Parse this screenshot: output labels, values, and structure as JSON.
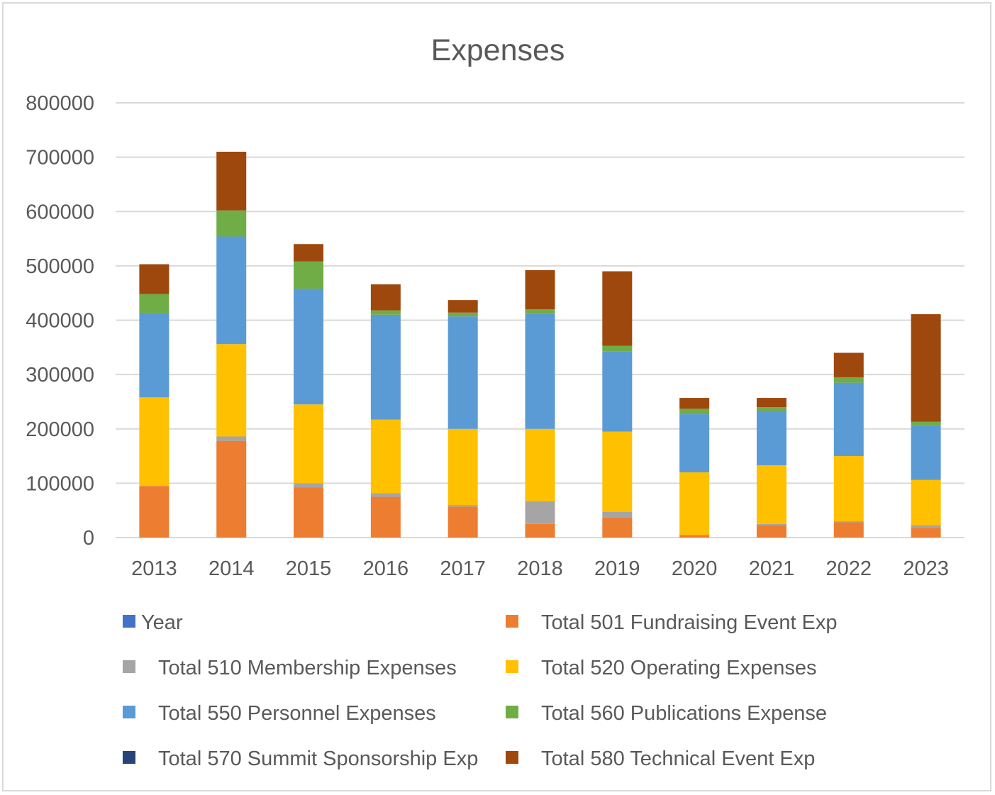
{
  "chart_data": {
    "type": "bar",
    "stacked": true,
    "title": "Expenses",
    "xlabel": "",
    "ylabel": "",
    "ylim": [
      0,
      800000
    ],
    "yticks": [
      0,
      100000,
      200000,
      300000,
      400000,
      500000,
      600000,
      700000,
      800000
    ],
    "grid": true,
    "legend_position": "bottom",
    "categories": [
      "2013",
      "2014",
      "2015",
      "2016",
      "2017",
      "2018",
      "2019",
      "2020",
      "2021",
      "2022",
      "2023"
    ],
    "series": [
      {
        "name": "Year",
        "color": "#4472c4",
        "values": [
          0,
          0,
          0,
          0,
          0,
          0,
          0,
          0,
          0,
          0,
          0
        ]
      },
      {
        "name": "Total 501 Fundraising Event Exp",
        "color": "#ed7d31",
        "values": [
          95000,
          178000,
          92000,
          75000,
          57000,
          25000,
          37000,
          5000,
          23000,
          28000,
          18000
        ]
      },
      {
        "name": "Total 510 Membership Expenses",
        "color": "#a5a5a5",
        "values": [
          0,
          8000,
          8000,
          7000,
          3000,
          42000,
          10000,
          0,
          2000,
          2000,
          5000
        ]
      },
      {
        "name": "Total 520 Operating Expenses",
        "color": "#ffc000",
        "values": [
          163000,
          170000,
          145000,
          135000,
          140000,
          133000,
          148000,
          115000,
          108000,
          120000,
          83000
        ]
      },
      {
        "name": "Total 550 Personnel Expenses",
        "color": "#5b9bd5",
        "values": [
          155000,
          198000,
          213000,
          193000,
          207000,
          212000,
          148000,
          107000,
          100000,
          135000,
          100000
        ]
      },
      {
        "name": "Total 560 Publications Expense",
        "color": "#70ad47",
        "values": [
          35000,
          48000,
          50000,
          8000,
          7000,
          8000,
          10000,
          10000,
          7000,
          10000,
          7000
        ]
      },
      {
        "name": "Total 570 Summit Sponsorship Exp",
        "color": "#264478",
        "values": [
          0,
          0,
          0,
          0,
          0,
          0,
          0,
          0,
          0,
          0,
          0
        ]
      },
      {
        "name": "Total 580 Technical Event Exp",
        "color": "#9e480e",
        "values": [
          55000,
          108000,
          32000,
          48000,
          23000,
          72000,
          137000,
          20000,
          17000,
          45000,
          198000
        ]
      }
    ]
  }
}
